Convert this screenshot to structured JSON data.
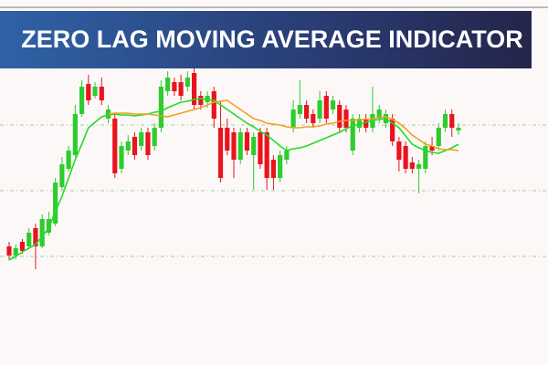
{
  "chart_data": {
    "type": "candlestick",
    "title": "ZERO LAG MOVING AVERAGE INDICATOR",
    "up_color": "#2ecc2e",
    "down_color": "#e8141e",
    "grid": true,
    "grid_color": "#9ccf9c",
    "ylim": [
      0,
      320
    ],
    "grid_levels": [
      263,
      191,
      119
    ],
    "open": [
      130,
      120,
      135,
      130,
      150,
      130,
      145,
      155,
      195,
      215,
      230,
      275,
      308,
      295,
      305,
      270,
      270,
      215,
      235,
      250,
      240,
      255,
      240,
      260,
      300,
      310,
      310,
      305,
      320,
      295,
      288,
      300,
      260,
      260,
      255,
      225,
      255,
      230,
      255,
      255,
      225,
      205,
      225,
      260,
      275,
      285,
      275,
      270,
      295,
      280,
      285,
      280,
      235,
      260,
      270,
      260,
      270,
      265,
      270,
      245,
      240,
      222,
      215,
      215,
      240,
      240,
      260,
      275,
      257
    ],
    "high": [
      135,
      132,
      138,
      150,
      155,
      165,
      168,
      205,
      228,
      240,
      285,
      312,
      318,
      310,
      315,
      285,
      275,
      245,
      252,
      255,
      260,
      260,
      265,
      312,
      322,
      315,
      318,
      322,
      325,
      300,
      300,
      305,
      290,
      270,
      260,
      260,
      260,
      255,
      260,
      260,
      230,
      235,
      240,
      290,
      312,
      290,
      280,
      300,
      300,
      295,
      290,
      285,
      275,
      275,
      275,
      305,
      285,
      280,
      275,
      250,
      245,
      228,
      225,
      245,
      250,
      265,
      280,
      280,
      265
    ],
    "low": [
      115,
      116,
      122,
      128,
      105,
      128,
      142,
      152,
      192,
      212,
      228,
      272,
      285,
      292,
      285,
      265,
      205,
      210,
      230,
      225,
      235,
      225,
      235,
      255,
      295,
      295,
      290,
      300,
      280,
      280,
      282,
      260,
      200,
      230,
      205,
      220,
      230,
      192,
      215,
      192,
      192,
      200,
      220,
      255,
      270,
      265,
      260,
      265,
      265,
      275,
      255,
      255,
      230,
      255,
      255,
      255,
      265,
      260,
      240,
      212,
      210,
      210,
      188,
      210,
      230,
      235,
      255,
      250,
      252
    ],
    "close": [
      120,
      128,
      125,
      145,
      130,
      160,
      160,
      200,
      220,
      235,
      275,
      305,
      290,
      305,
      290,
      280,
      210,
      240,
      245,
      230,
      255,
      230,
      260,
      305,
      315,
      300,
      295,
      315,
      285,
      285,
      295,
      270,
      205,
      235,
      225,
      255,
      235,
      250,
      220,
      205,
      205,
      230,
      235,
      280,
      285,
      270,
      265,
      290,
      270,
      290,
      260,
      260,
      270,
      270,
      260,
      275,
      280,
      275,
      245,
      225,
      215,
      215,
      220,
      240,
      235,
      260,
      275,
      260,
      260
    ],
    "series": [
      {
        "color": "#22dd22",
        "values": [
          115,
          119,
          124,
          128,
          132,
          141,
          150,
          168,
          185,
          205,
          225,
          242,
          260,
          266,
          272,
          274,
          275,
          274,
          274,
          273,
          274,
          275,
          277,
          278,
          282,
          285,
          288,
          289,
          291,
          292,
          291,
          290,
          285,
          280,
          275,
          270,
          265,
          261,
          256,
          252,
          246,
          240,
          235,
          237,
          238,
          240,
          243,
          246,
          249,
          252,
          255,
          259,
          262,
          264,
          266,
          268,
          269,
          270,
          265,
          260,
          251,
          242,
          238,
          235,
          233,
          232,
          235,
          238,
          242
        ]
      },
      {
        "color": "#f0a020",
        "values": [
          null,
          null,
          null,
          null,
          null,
          null,
          null,
          null,
          null,
          null,
          null,
          null,
          null,
          null,
          null,
          275,
          276,
          276,
          276,
          275,
          275,
          275,
          274,
          273,
          272,
          274,
          276,
          278,
          280,
          282,
          285,
          288,
          289,
          290,
          285,
          280,
          275,
          270,
          268,
          265,
          264,
          263,
          261,
          260,
          260,
          261,
          261,
          262,
          264,
          265,
          267,
          268,
          268,
          269,
          269,
          270,
          271,
          272,
          269,
          265,
          259,
          252,
          247,
          242,
          240,
          237,
          236,
          236,
          235
        ]
      }
    ]
  }
}
